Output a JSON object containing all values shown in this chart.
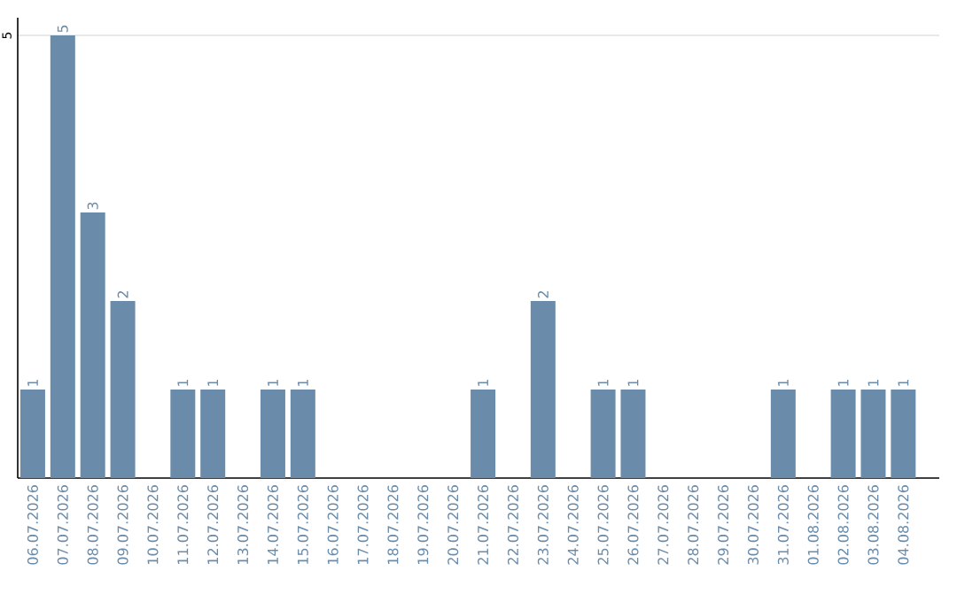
{
  "chart_data": {
    "type": "bar",
    "categories": [
      "06.07.2026",
      "07.07.2026",
      "08.07.2026",
      "09.07.2026",
      "10.07.2026",
      "11.07.2026",
      "12.07.2026",
      "13.07.2026",
      "14.07.2026",
      "15.07.2026",
      "16.07.2026",
      "17.07.2026",
      "18.07.2026",
      "19.07.2026",
      "20.07.2026",
      "21.07.2026",
      "22.07.2026",
      "23.07.2026",
      "24.07.2026",
      "25.07.2026",
      "26.07.2026",
      "27.07.2026",
      "28.07.2026",
      "29.07.2026",
      "30.07.2026",
      "31.07.2026",
      "01.08.2026",
      "02.08.2026",
      "03.08.2026",
      "04.08.2026"
    ],
    "values": [
      1,
      5,
      3,
      2,
      0,
      1,
      1,
      0,
      1,
      1,
      0,
      0,
      0,
      0,
      0,
      1,
      0,
      2,
      0,
      1,
      1,
      0,
      0,
      0,
      0,
      1,
      0,
      1,
      1,
      1
    ],
    "value_labels": [
      "1",
      "5",
      "3",
      "2",
      null,
      "1",
      "1",
      null,
      "1",
      "1",
      null,
      null,
      null,
      null,
      null,
      "1",
      null,
      "2",
      null,
      "1",
      "1",
      null,
      null,
      null,
      null,
      "1",
      null,
      "1",
      "1",
      "1"
    ],
    "color": "#6a8caa",
    "ylim": [
      0,
      5.2
    ],
    "yticks": [
      5
    ],
    "grid": "y"
  }
}
